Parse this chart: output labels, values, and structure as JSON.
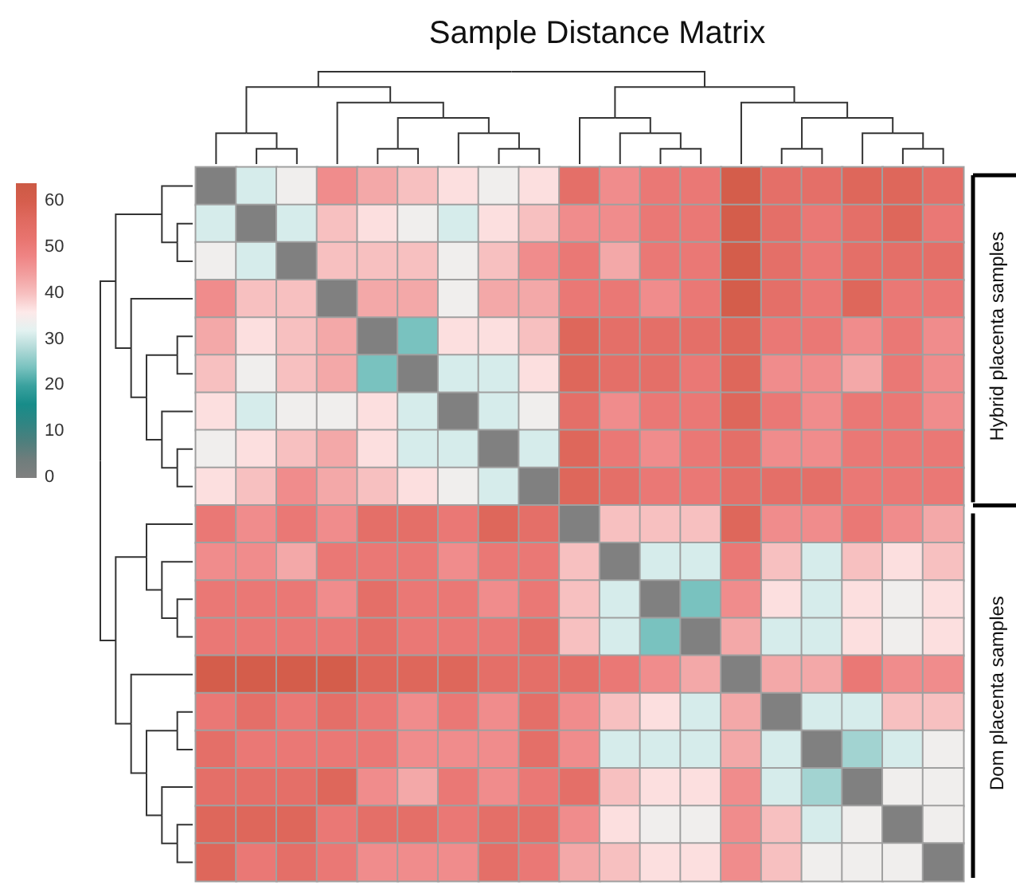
{
  "chart_data": {
    "type": "heatmap",
    "title": "Sample Distance Matrix",
    "categories": [
      null,
      null,
      null,
      null,
      null,
      null,
      null,
      null,
      null,
      null,
      null,
      null,
      null,
      null,
      null,
      null,
      null,
      null,
      null
    ],
    "y_categories": [
      null,
      null,
      null,
      null,
      null,
      null,
      null,
      null,
      null,
      null,
      null,
      null,
      null,
      null,
      null,
      null,
      null,
      null,
      null
    ],
    "cells": [
      [
        0,
        31,
        34,
        47,
        43,
        40,
        37,
        34,
        37,
        54,
        47,
        51,
        51,
        61,
        54,
        54,
        57,
        57,
        54
      ],
      [
        31,
        0,
        31,
        40,
        37,
        34,
        31,
        37,
        40,
        47,
        47,
        51,
        51,
        61,
        54,
        51,
        54,
        57,
        51
      ],
      [
        34,
        31,
        0,
        40,
        40,
        40,
        34,
        40,
        47,
        51,
        43,
        51,
        51,
        61,
        54,
        51,
        54,
        54,
        54
      ],
      [
        47,
        40,
        40,
        0,
        43,
        43,
        34,
        43,
        43,
        51,
        51,
        47,
        51,
        61,
        54,
        51,
        57,
        51,
        51
      ],
      [
        43,
        37,
        40,
        43,
        0,
        24,
        37,
        37,
        40,
        57,
        54,
        54,
        54,
        57,
        51,
        51,
        47,
        51,
        47
      ],
      [
        40,
        34,
        40,
        43,
        24,
        0,
        31,
        31,
        37,
        57,
        54,
        54,
        51,
        57,
        47,
        47,
        43,
        51,
        47
      ],
      [
        37,
        31,
        34,
        34,
        37,
        31,
        0,
        31,
        34,
        54,
        47,
        51,
        51,
        57,
        51,
        47,
        51,
        51,
        47
      ],
      [
        34,
        37,
        40,
        43,
        37,
        31,
        31,
        0,
        31,
        57,
        51,
        47,
        51,
        54,
        47,
        47,
        51,
        51,
        51
      ],
      [
        37,
        40,
        47,
        43,
        40,
        37,
        34,
        31,
        0,
        57,
        54,
        51,
        51,
        54,
        54,
        54,
        51,
        51,
        51
      ],
      [
        51,
        47,
        51,
        47,
        54,
        54,
        51,
        57,
        54,
        0,
        40,
        40,
        40,
        57,
        47,
        47,
        51,
        47,
        43
      ],
      [
        47,
        47,
        43,
        51,
        51,
        51,
        47,
        51,
        51,
        40,
        0,
        31,
        31,
        51,
        40,
        31,
        40,
        37,
        40
      ],
      [
        51,
        51,
        51,
        47,
        54,
        51,
        51,
        47,
        51,
        40,
        31,
        0,
        24,
        47,
        37,
        31,
        37,
        34,
        37
      ],
      [
        51,
        51,
        51,
        51,
        54,
        51,
        51,
        51,
        54,
        40,
        31,
        24,
        0,
        43,
        31,
        31,
        37,
        34,
        37
      ],
      [
        61,
        61,
        61,
        61,
        57,
        57,
        57,
        54,
        54,
        54,
        51,
        47,
        43,
        0,
        43,
        43,
        51,
        47,
        47
      ],
      [
        51,
        54,
        51,
        54,
        51,
        47,
        51,
        47,
        54,
        47,
        40,
        37,
        31,
        43,
        0,
        31,
        31,
        40,
        40
      ],
      [
        54,
        51,
        51,
        51,
        51,
        47,
        47,
        47,
        54,
        47,
        31,
        31,
        31,
        43,
        31,
        0,
        27,
        31,
        34
      ],
      [
        54,
        54,
        54,
        57,
        47,
        43,
        51,
        47,
        51,
        54,
        40,
        37,
        37,
        47,
        31,
        27,
        0,
        34,
        34
      ],
      [
        57,
        57,
        57,
        51,
        54,
        54,
        51,
        54,
        54,
        47,
        37,
        34,
        34,
        47,
        40,
        31,
        34,
        0,
        34
      ],
      [
        57,
        51,
        54,
        51,
        47,
        47,
        47,
        54,
        51,
        43,
        40,
        37,
        37,
        47,
        40,
        34,
        34,
        34,
        0
      ]
    ],
    "clim": [
      0,
      64
    ],
    "cticks": [
      0,
      10,
      20,
      30,
      40,
      50,
      60
    ],
    "annotations": [
      "Hybrid placenta samples",
      "Dom placenta samples"
    ]
  }
}
